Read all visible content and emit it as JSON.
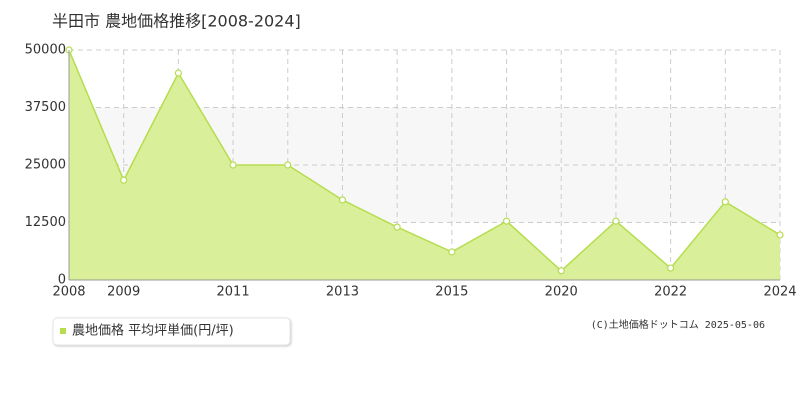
{
  "chart_data": {
    "type": "area",
    "title": "半田市 農地価格推移[2008-2024]",
    "categories": [
      "2008",
      "2009",
      null,
      "2011",
      null,
      "2013",
      null,
      "2015",
      null,
      "2020",
      null,
      "2022",
      null,
      "2024"
    ],
    "series": [
      {
        "name": "農地価格 平均坪単価(円/坪)",
        "color": "#b5dd4f",
        "values": [
          50000,
          21700,
          45000,
          25000,
          25000,
          17400,
          11500,
          6100,
          12800,
          2000,
          12800,
          2600,
          17000,
          9800
        ]
      }
    ],
    "ylim": [
      0,
      50000
    ],
    "yticks": [
      0,
      12500,
      25000,
      37500,
      50000
    ],
    "grid": true,
    "credit": "(C)土地価格ドットコム 2025-05-06"
  }
}
